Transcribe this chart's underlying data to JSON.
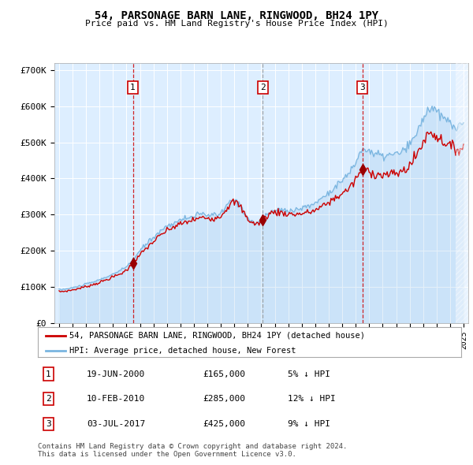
{
  "title": "54, PARSONAGE BARN LANE, RINGWOOD, BH24 1PY",
  "subtitle": "Price paid vs. HM Land Registry's House Price Index (HPI)",
  "ylim": [
    0,
    720000
  ],
  "yticks": [
    0,
    100000,
    200000,
    300000,
    400000,
    500000,
    600000,
    700000
  ],
  "ytick_labels": [
    "£0",
    "£100K",
    "£200K",
    "£300K",
    "£400K",
    "£500K",
    "£600K",
    "£700K"
  ],
  "bg_color": "#ddeeff",
  "hpi_color": "#7ab5e0",
  "price_color": "#cc0000",
  "sale_marker_color": "#990000",
  "sale1_date": 2000.47,
  "sale1_price": 165000,
  "sale2_date": 2010.11,
  "sale2_price": 285000,
  "sale3_date": 2017.5,
  "sale3_price": 425000,
  "legend_label_red": "54, PARSONAGE BARN LANE, RINGWOOD, BH24 1PY (detached house)",
  "legend_label_blue": "HPI: Average price, detached house, New Forest",
  "table_rows": [
    {
      "num": "1",
      "date": "19-JUN-2000",
      "price": "£165,000",
      "hpi": "5% ↓ HPI"
    },
    {
      "num": "2",
      "date": "10-FEB-2010",
      "price": "£285,000",
      "hpi": "12% ↓ HPI"
    },
    {
      "num": "3",
      "date": "03-JUL-2017",
      "price": "£425,000",
      "hpi": "9% ↓ HPI"
    }
  ],
  "footer": "Contains HM Land Registry data © Crown copyright and database right 2024.\nThis data is licensed under the Open Government Licence v3.0."
}
